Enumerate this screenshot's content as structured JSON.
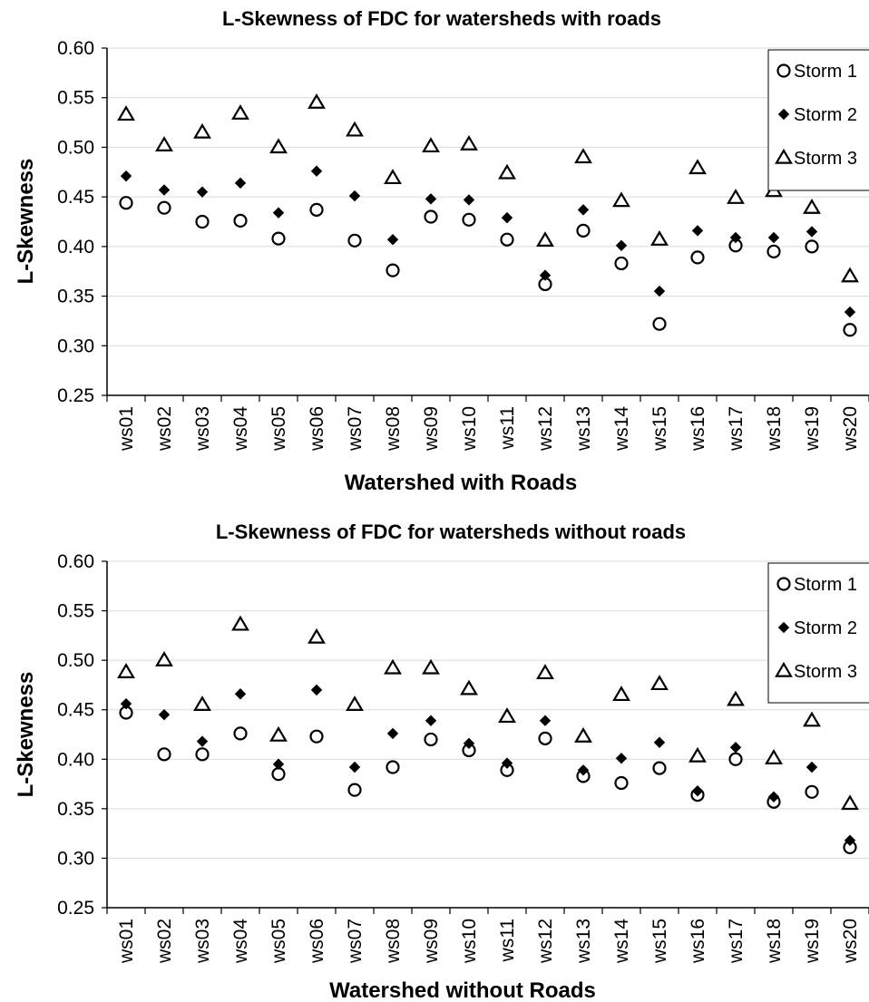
{
  "chart_data": [
    {
      "type": "scatter",
      "title": "L-Skewness of FDC for watersheds with roads",
      "xlabel": "Watershed with Roads",
      "ylabel": "L-Skewness",
      "ylim": [
        0.25,
        0.6
      ],
      "yticks": [
        "0.25",
        "0.30",
        "0.35",
        "0.40",
        "0.45",
        "0.50",
        "0.55",
        "0.60"
      ],
      "grid": true,
      "legend_position": "top-right",
      "categories": [
        "ws01",
        "ws02",
        "ws03",
        "ws04",
        "ws05",
        "ws06",
        "ws07",
        "ws08",
        "ws09",
        "ws10",
        "ws11",
        "ws12",
        "ws13",
        "ws14",
        "ws15",
        "ws16",
        "ws17",
        "ws18",
        "ws19",
        "ws20"
      ],
      "series": [
        {
          "name": "Storm 1",
          "marker": "circle",
          "values": [
            0.444,
            0.439,
            0.425,
            0.426,
            0.408,
            0.437,
            0.406,
            0.376,
            0.43,
            0.427,
            0.407,
            0.362,
            0.416,
            0.383,
            0.322,
            0.389,
            0.401,
            0.395,
            0.4,
            0.316
          ]
        },
        {
          "name": "Storm 2",
          "marker": "diamond",
          "values": [
            0.471,
            0.457,
            0.455,
            0.464,
            0.434,
            0.476,
            0.451,
            0.407,
            0.448,
            0.447,
            0.429,
            0.371,
            0.437,
            0.401,
            0.355,
            0.416,
            0.409,
            0.409,
            0.415,
            0.334
          ]
        },
        {
          "name": "Storm 3",
          "marker": "triangle",
          "values": [
            0.533,
            0.502,
            0.515,
            0.534,
            0.5,
            0.545,
            0.517,
            0.469,
            0.501,
            0.503,
            0.474,
            0.406,
            0.49,
            0.446,
            0.407,
            0.479,
            0.449,
            0.456,
            0.439,
            0.37
          ]
        }
      ]
    },
    {
      "type": "scatter",
      "title": "L-Skewness of FDC for watersheds without roads",
      "xlabel": "Watershed without Roads",
      "ylabel": "L-Skewness",
      "ylim": [
        0.25,
        0.6
      ],
      "yticks": [
        "0.25",
        "0.30",
        "0.35",
        "0.40",
        "0.45",
        "0.50",
        "0.55",
        "0.60"
      ],
      "grid": true,
      "legend_position": "top-right",
      "categories": [
        "ws01",
        "ws02",
        "ws03",
        "ws04",
        "ws05",
        "ws06",
        "ws07",
        "ws08",
        "ws09",
        "ws10",
        "ws11",
        "ws12",
        "ws13",
        "ws14",
        "ws15",
        "ws16",
        "ws17",
        "ws18",
        "ws19",
        "ws20"
      ],
      "series": [
        {
          "name": "Storm 1",
          "marker": "circle",
          "values": [
            0.447,
            0.405,
            0.405,
            0.426,
            0.385,
            0.423,
            0.369,
            0.392,
            0.42,
            0.409,
            0.389,
            0.421,
            0.383,
            0.376,
            0.391,
            0.364,
            0.4,
            0.357,
            0.367,
            0.311
          ]
        },
        {
          "name": "Storm 2",
          "marker": "diamond",
          "values": [
            0.456,
            0.445,
            0.418,
            0.466,
            0.395,
            0.47,
            0.392,
            0.426,
            0.439,
            0.416,
            0.396,
            0.439,
            0.389,
            0.401,
            0.417,
            0.368,
            0.412,
            0.362,
            0.392,
            0.318
          ]
        },
        {
          "name": "Storm 3",
          "marker": "triangle",
          "values": [
            0.488,
            0.5,
            0.455,
            0.536,
            0.424,
            0.523,
            0.455,
            0.492,
            0.492,
            0.471,
            0.443,
            0.487,
            0.423,
            0.465,
            0.476,
            0.403,
            0.46,
            0.401,
            0.439,
            0.355
          ]
        }
      ]
    }
  ],
  "style": {
    "marker_color": "#000000",
    "grid_color": "#d9d9d9",
    "background": "#ffffff"
  }
}
